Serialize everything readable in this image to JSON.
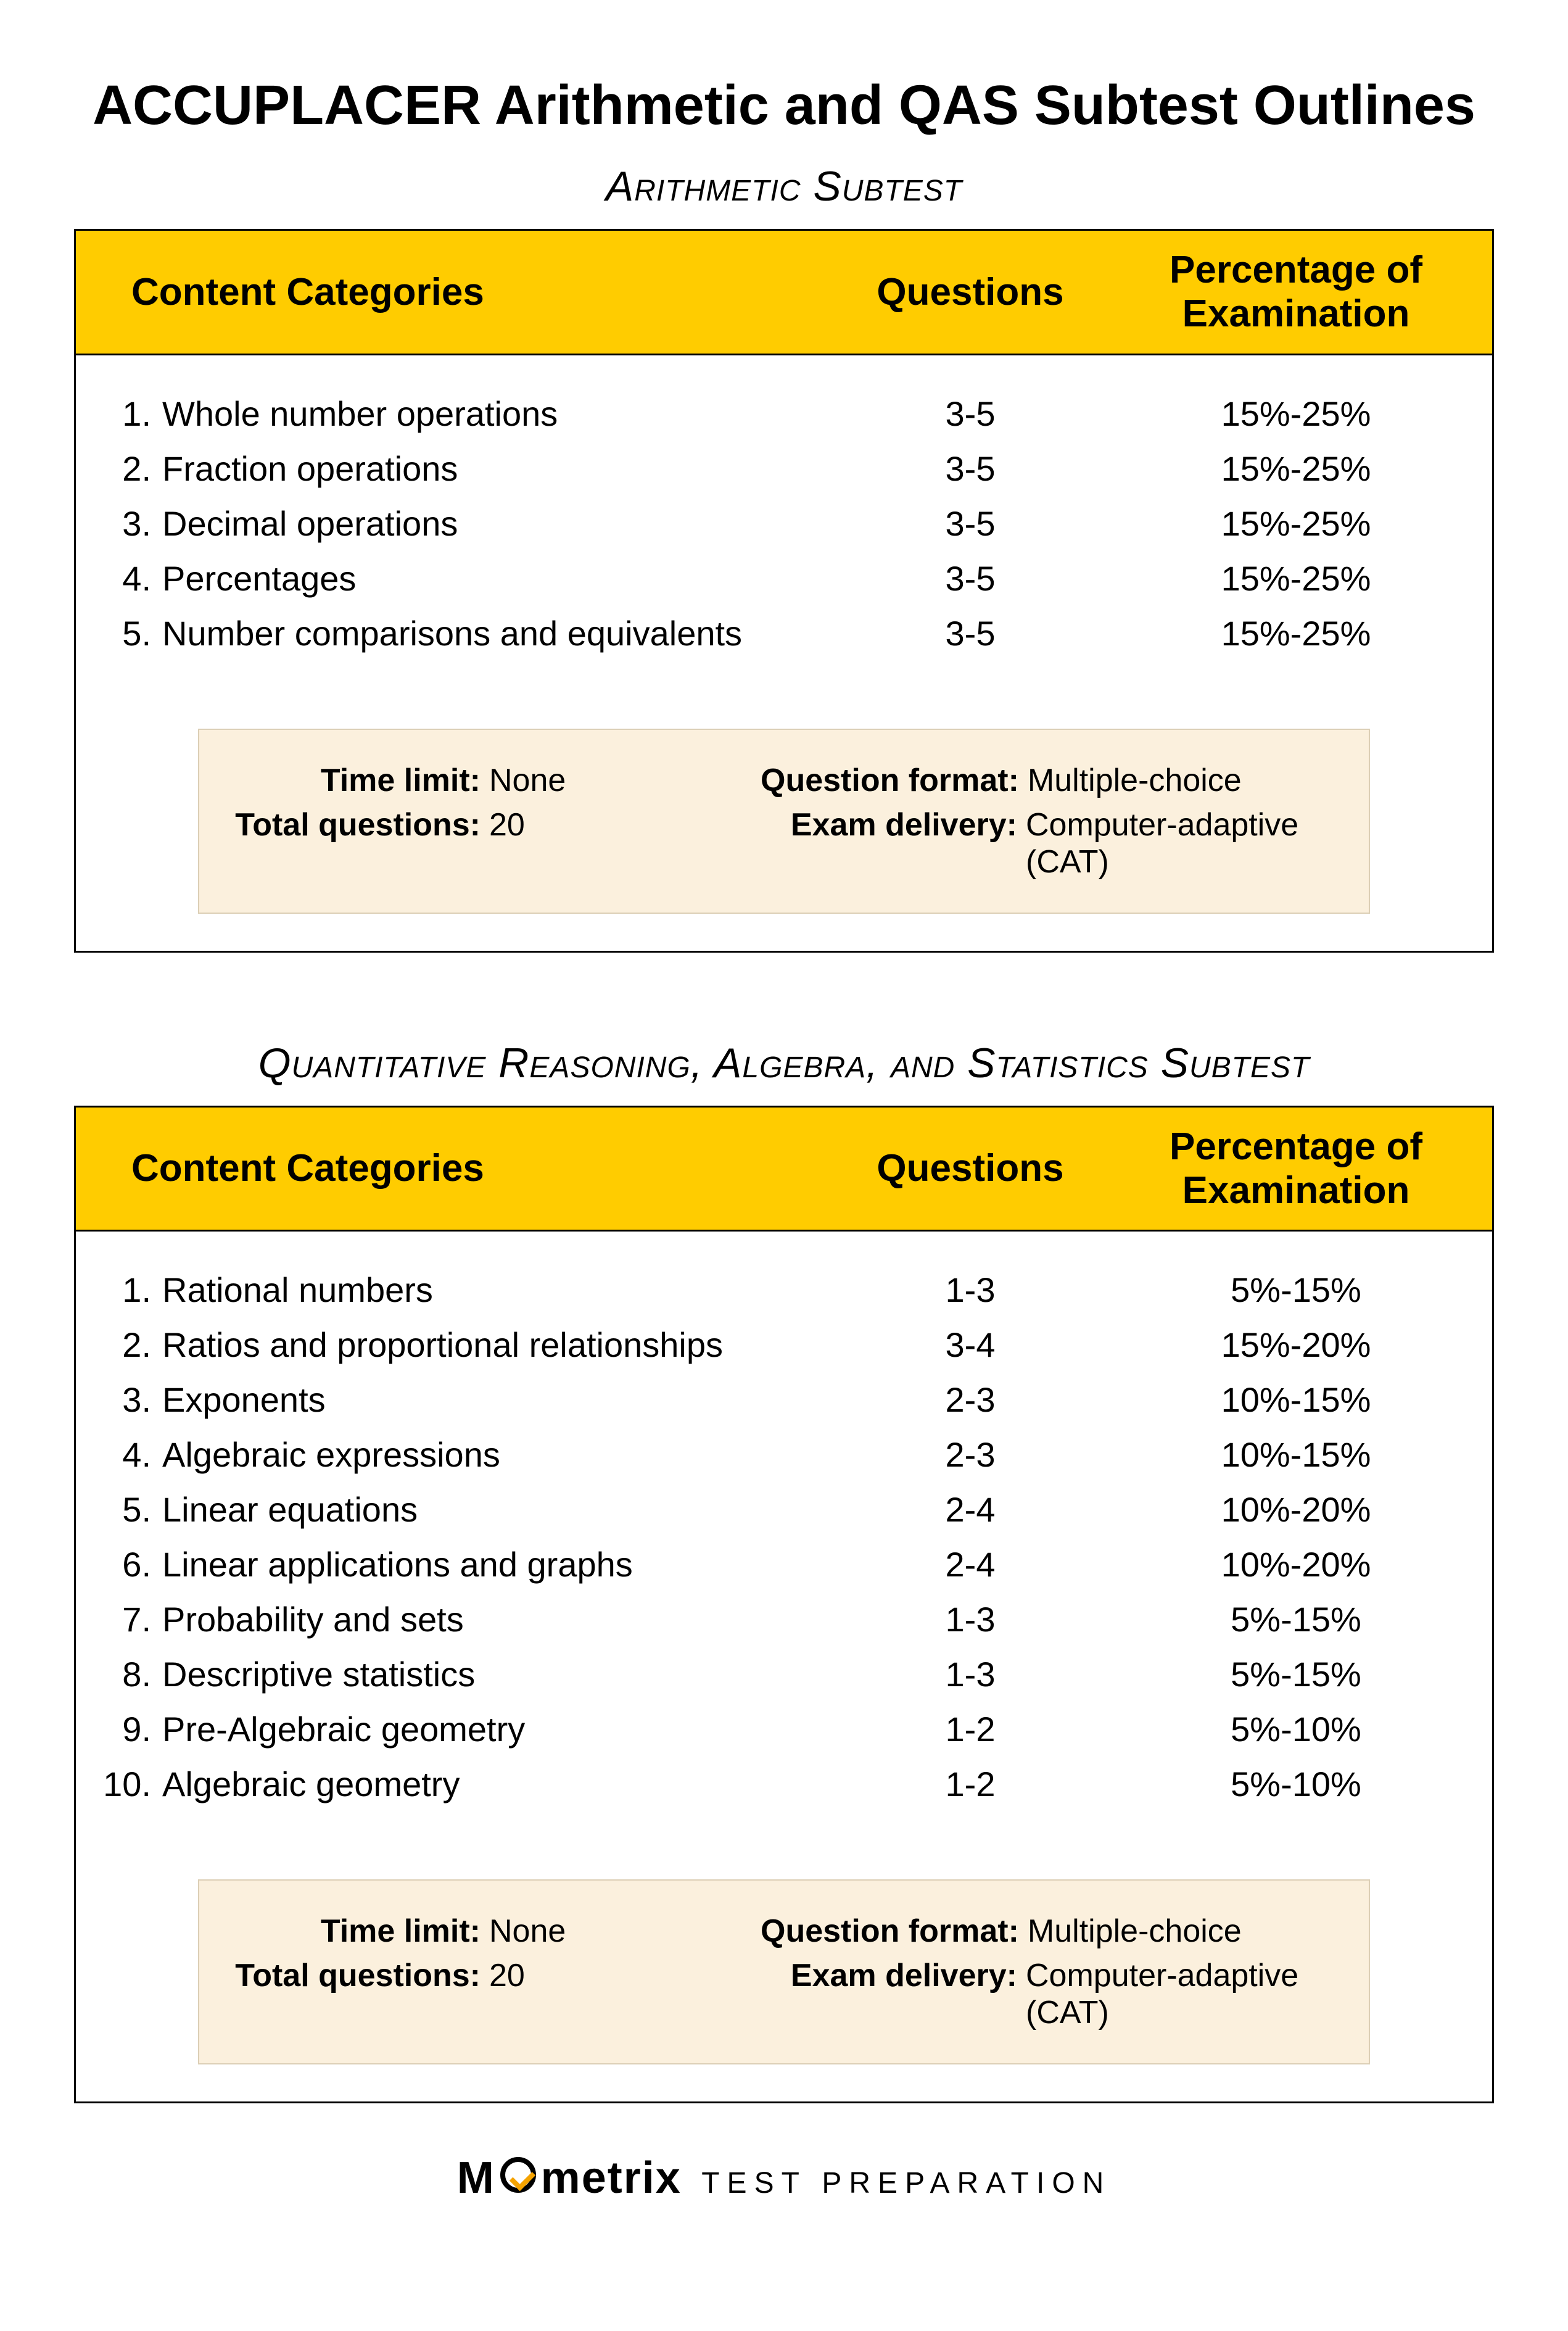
{
  "colors": {
    "header_bg": "#ffcc00",
    "border": "#000000",
    "info_bg": "#fbf0dd",
    "info_border": "#dccfb6",
    "text": "#000000",
    "brand_check": "#f5a300",
    "page_bg": "#ffffff"
  },
  "typography": {
    "main_title_pt": 90,
    "main_title_weight": 700,
    "subtest_title_pt": 68,
    "subtest_title_style": "italic-small-caps",
    "header_pt": 62,
    "header_weight": 700,
    "body_pt": 56,
    "info_pt": 52,
    "footer_brand_pt": 72,
    "footer_sub_pt": 48
  },
  "page_title": "ACCUPLACER Arithmetic and QAS Subtest Outlines",
  "table_headers": {
    "categories": "Content Categories",
    "questions": "Questions",
    "percentage": "Percentage of Examination"
  },
  "info_labels": {
    "time_limit": "Time limit:",
    "total_questions": "Total questions:",
    "question_format": "Question format:",
    "exam_delivery": "Exam delivery:"
  },
  "arithmetic": {
    "title": "Arithmetic Subtest",
    "rows": [
      {
        "n": "1.",
        "name": "Whole number operations",
        "q": "3-5",
        "pct": "15%-25%"
      },
      {
        "n": "2.",
        "name": "Fraction operations",
        "q": "3-5",
        "pct": "15%-25%"
      },
      {
        "n": "3.",
        "name": "Decimal operations",
        "q": "3-5",
        "pct": "15%-25%"
      },
      {
        "n": "4.",
        "name": "Percentages",
        "q": "3-5",
        "pct": "15%-25%"
      },
      {
        "n": "5.",
        "name": "Number comparisons and equivalents",
        "q": "3-5",
        "pct": "15%-25%"
      }
    ],
    "info": {
      "time_limit": "None",
      "total_questions": "20",
      "question_format": "Multiple-choice",
      "exam_delivery": "Computer-adaptive (CAT)"
    }
  },
  "qas": {
    "title": "Quantitative Reasoning, Algebra, and Statistics Subtest",
    "rows": [
      {
        "n": "1.",
        "name": "Rational numbers",
        "q": "1-3",
        "pct": "5%-15%"
      },
      {
        "n": "2.",
        "name": "Ratios and proportional relationships",
        "q": "3-4",
        "pct": "15%-20%"
      },
      {
        "n": "3.",
        "name": "Exponents",
        "q": "2-3",
        "pct": "10%-15%"
      },
      {
        "n": "4.",
        "name": "Algebraic expressions",
        "q": "2-3",
        "pct": "10%-15%"
      },
      {
        "n": "5.",
        "name": "Linear equations",
        "q": "2-4",
        "pct": "10%-20%"
      },
      {
        "n": "6.",
        "name": "Linear applications and graphs",
        "q": "2-4",
        "pct": "10%-20%"
      },
      {
        "n": "7.",
        "name": "Probability and sets",
        "q": "1-3",
        "pct": "5%-15%"
      },
      {
        "n": "8.",
        "name": "Descriptive statistics",
        "q": "1-3",
        "pct": "5%-15%"
      },
      {
        "n": "9.",
        "name": "Pre-Algebraic geometry",
        "q": "1-2",
        "pct": "5%-10%"
      },
      {
        "n": "10.",
        "name": "Algebraic geometry",
        "q": "1-2",
        "pct": "5%-10%"
      }
    ],
    "info": {
      "time_limit": "None",
      "total_questions": "20",
      "question_format": "Multiple-choice",
      "exam_delivery": "Computer-adaptive (CAT)"
    }
  },
  "footer": {
    "brand_pre": "M",
    "brand_post": "metrix",
    "sub": "TEST  PREPARATION"
  }
}
